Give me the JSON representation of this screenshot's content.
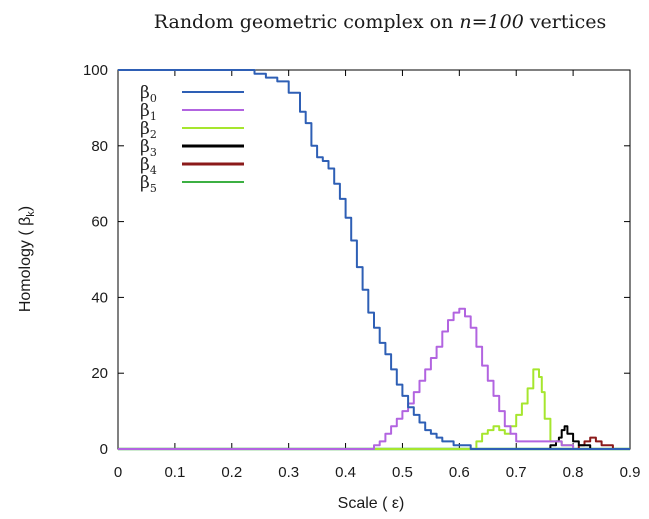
{
  "chart_data": {
    "type": "line",
    "title_prefix": "Random geometric complex on ",
    "title_math": "n=100",
    "title_suffix": " vertices",
    "xlabel": "Scale ( ε)",
    "ylabel_prefix": "Homology ( β",
    "ylabel_sub": "k",
    "ylabel_suffix": ")",
    "xlim": [
      0,
      0.9
    ],
    "ylim": [
      0,
      100
    ],
    "xticks": [
      0,
      0.1,
      0.2,
      0.3,
      0.4,
      0.5,
      0.6,
      0.7,
      0.8,
      0.9
    ],
    "xtick_labels": [
      "0",
      "0.1",
      "0.2",
      "0.3",
      "0.4",
      "0.5",
      "0.6",
      "0.7",
      "0.8",
      "0.9"
    ],
    "yticks": [
      0,
      20,
      40,
      60,
      80,
      100
    ],
    "ytick_labels": [
      "0",
      "20",
      "40",
      "60",
      "80",
      "100"
    ],
    "legend_position": "top-left",
    "series": [
      {
        "name": "β",
        "sub": "0",
        "color": "#2e5fb5",
        "x": [
          0,
          0.22,
          0.24,
          0.26,
          0.28,
          0.3,
          0.32,
          0.33,
          0.34,
          0.35,
          0.36,
          0.37,
          0.38,
          0.39,
          0.4,
          0.41,
          0.42,
          0.43,
          0.44,
          0.45,
          0.46,
          0.47,
          0.48,
          0.49,
          0.5,
          0.51,
          0.52,
          0.53,
          0.54,
          0.55,
          0.56,
          0.57,
          0.58,
          0.59,
          0.6,
          0.61,
          0.62,
          0.65,
          0.7,
          0.8,
          0.9
        ],
        "y": [
          100,
          100,
          99,
          98,
          97,
          94,
          89,
          86,
          80,
          77,
          76,
          74,
          70,
          66,
          61,
          55,
          48,
          42,
          36,
          32,
          28,
          25,
          21,
          17,
          14,
          11,
          9,
          7,
          5,
          4,
          3,
          2,
          2,
          1,
          1,
          1,
          0,
          0,
          0,
          0,
          0
        ]
      },
      {
        "name": "β",
        "sub": "1",
        "color": "#b264e0",
        "x": [
          0,
          0.44,
          0.45,
          0.46,
          0.47,
          0.48,
          0.49,
          0.5,
          0.51,
          0.52,
          0.53,
          0.54,
          0.55,
          0.56,
          0.57,
          0.58,
          0.59,
          0.6,
          0.61,
          0.62,
          0.63,
          0.64,
          0.65,
          0.66,
          0.67,
          0.68,
          0.69,
          0.7,
          0.71,
          0.72,
          0.75,
          0.78,
          0.8,
          0.9
        ],
        "y": [
          0,
          0,
          1,
          2,
          4,
          6,
          8,
          10,
          12,
          15,
          18,
          21,
          24,
          27,
          31,
          34,
          36,
          37,
          35,
          32,
          27,
          22,
          18,
          14,
          10,
          6,
          4,
          2,
          2,
          2,
          2,
          1,
          0,
          0
        ]
      },
      {
        "name": "β",
        "sub": "2",
        "color": "#a6e62e",
        "x": [
          0,
          0.62,
          0.63,
          0.64,
          0.65,
          0.66,
          0.67,
          0.68,
          0.69,
          0.7,
          0.71,
          0.72,
          0.73,
          0.74,
          0.745,
          0.75,
          0.76,
          0.78,
          0.8,
          0.9
        ],
        "y": [
          0,
          0,
          2,
          4,
          5,
          6,
          5,
          4,
          6,
          9,
          12,
          16,
          21,
          19,
          15,
          8,
          2,
          1,
          0,
          0
        ]
      },
      {
        "name": "β",
        "sub": "3",
        "color": "#000000",
        "x": [
          0,
          0.75,
          0.76,
          0.77,
          0.775,
          0.78,
          0.785,
          0.79,
          0.8,
          0.81,
          0.83,
          0.9
        ],
        "y": [
          0,
          0,
          1,
          2,
          3,
          5,
          6,
          4,
          2,
          1,
          0,
          0
        ]
      },
      {
        "name": "β",
        "sub": "4",
        "color": "#8b1a1a",
        "x": [
          0,
          0.8,
          0.81,
          0.82,
          0.83,
          0.84,
          0.85,
          0.87,
          0.9
        ],
        "y": [
          0,
          0,
          1,
          2,
          3,
          2,
          1,
          0,
          0
        ]
      },
      {
        "name": "β",
        "sub": "5",
        "color": "#3cb043",
        "x": [
          0,
          0.9
        ],
        "y": [
          0,
          0
        ]
      }
    ]
  }
}
